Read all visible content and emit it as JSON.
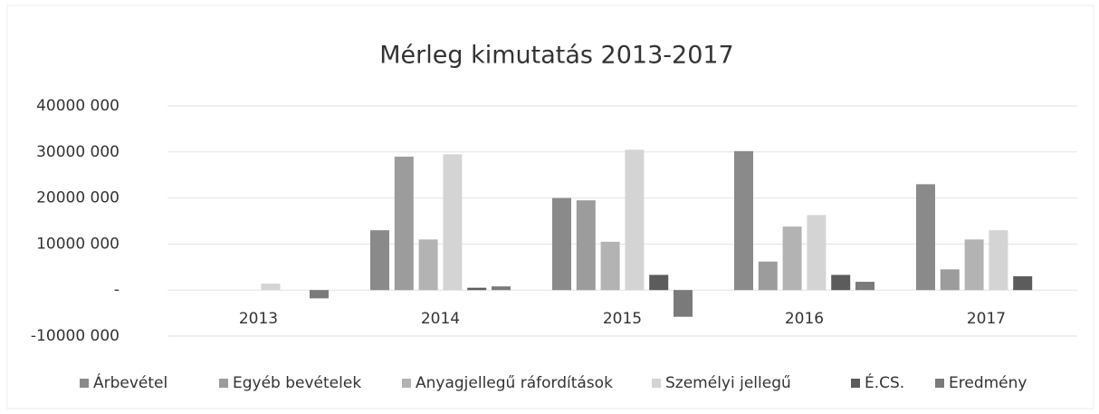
{
  "chart_data": {
    "type": "bar",
    "title": "Mérleg kimutatás 2013-2017",
    "categories": [
      "2013",
      "2014",
      "2015",
      "2016",
      "2017"
    ],
    "series": [
      {
        "name": "Árbevétel",
        "color": "#8a8a8a",
        "values": [
          0,
          13000000,
          20000000,
          30200000,
          23000000
        ]
      },
      {
        "name": "Egyéb bevételek",
        "color": "#9c9c9c",
        "values": [
          0,
          29000000,
          19500000,
          6200000,
          4500000
        ]
      },
      {
        "name": "Anyagjellegű ráfordítások",
        "color": "#b3b3b3",
        "values": [
          0,
          11000000,
          10500000,
          13800000,
          11000000
        ]
      },
      {
        "name": "Személyi jellegű",
        "color": "#d4d4d4",
        "values": [
          1400000,
          29500000,
          30500000,
          16300000,
          13000000
        ]
      },
      {
        "name": "É.CS.",
        "color": "#5c5c5c",
        "values": [
          0,
          500000,
          3300000,
          3300000,
          3000000
        ]
      },
      {
        "name": "Eredmény",
        "color": "#7a7a7a",
        "values": [
          -1800000,
          800000,
          -5800000,
          1800000,
          0
        ]
      }
    ],
    "ylim": [
      -10000000,
      40000000
    ],
    "yticks": [
      {
        "value": -10000000,
        "label": "-10000 000"
      },
      {
        "value": 0,
        "label": "-"
      },
      {
        "value": 10000000,
        "label": "10000 000"
      },
      {
        "value": 20000000,
        "label": "20000 000"
      },
      {
        "value": 30000000,
        "label": "30000 000"
      },
      {
        "value": 40000000,
        "label": "40000 000"
      }
    ],
    "grid": true,
    "legend": "bottom"
  }
}
